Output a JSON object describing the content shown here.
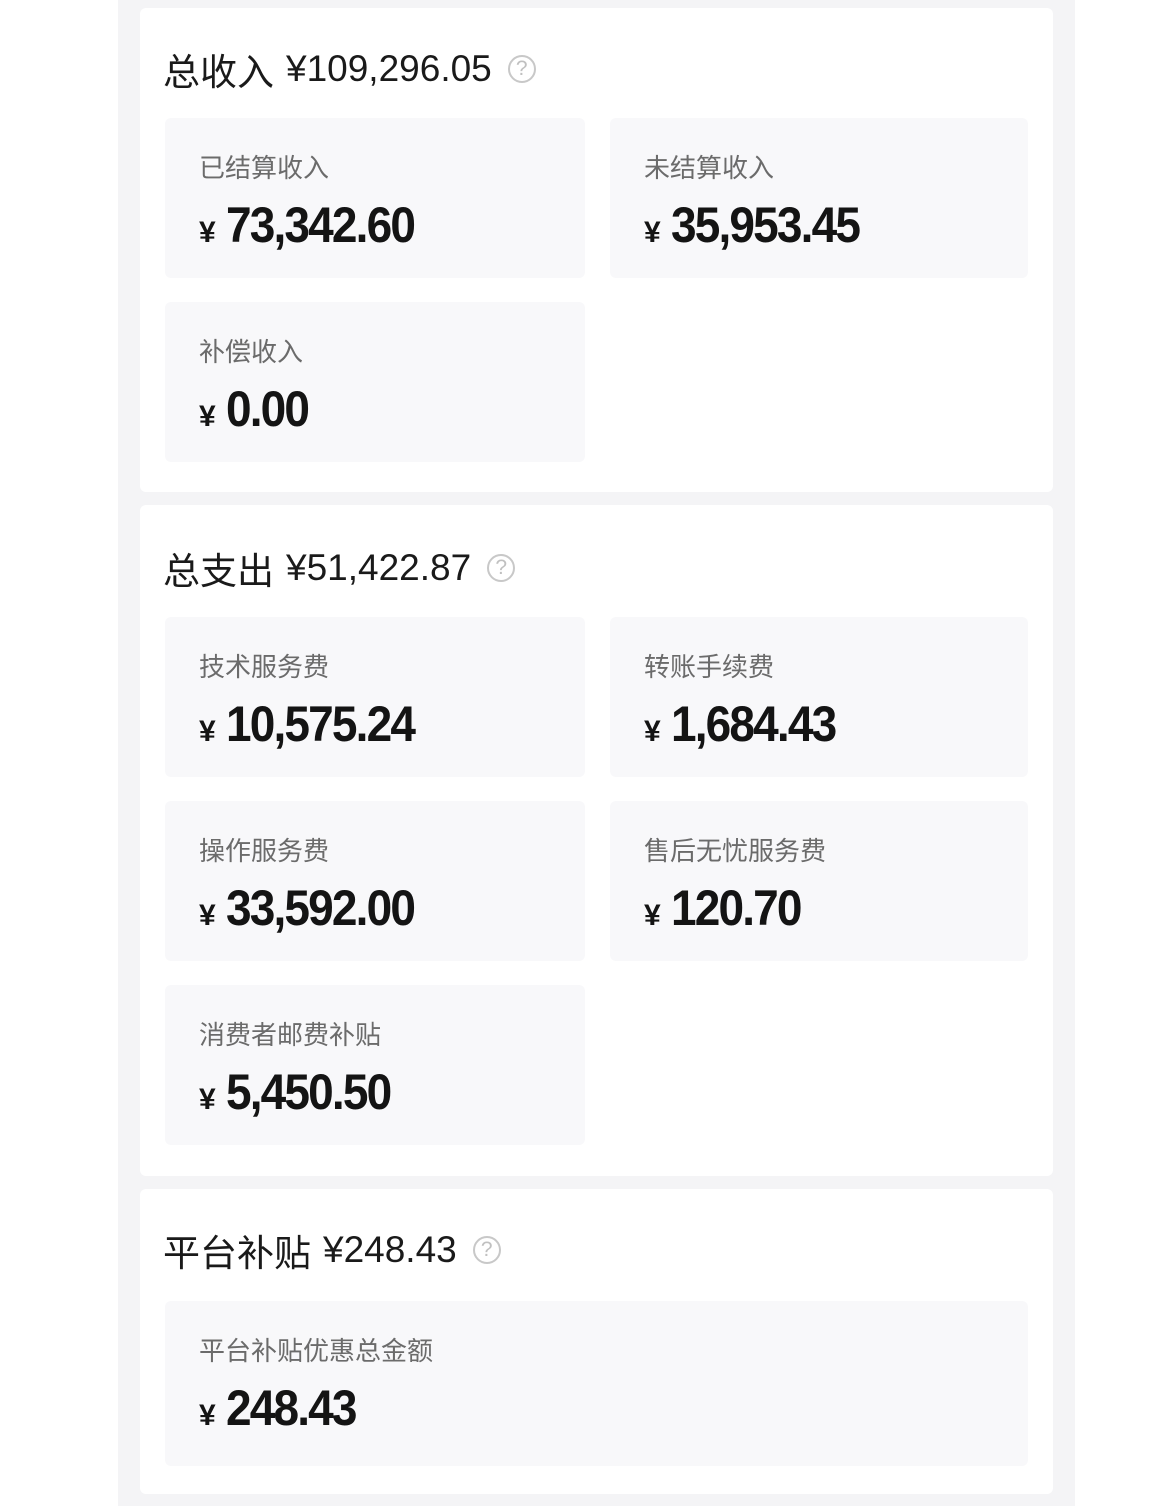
{
  "currency_symbol": "¥",
  "income": {
    "title": "总收入",
    "total": "¥109,296.05",
    "items": [
      {
        "label": "已结算收入",
        "value": "73,342.60"
      },
      {
        "label": "未结算收入",
        "value": "35,953.45"
      },
      {
        "label": "补偿收入",
        "value": "0.00"
      }
    ]
  },
  "expense": {
    "title": "总支出",
    "total": "¥51,422.87",
    "items": [
      {
        "label": "技术服务费",
        "value": "10,575.24"
      },
      {
        "label": "转账手续费",
        "value": "1,684.43"
      },
      {
        "label": "操作服务费",
        "value": "33,592.00"
      },
      {
        "label": "售后无忧服务费",
        "value": "120.70"
      },
      {
        "label": "消费者邮费补贴",
        "value": "5,450.50"
      }
    ]
  },
  "subsidy": {
    "title": "平台补贴",
    "total": "¥248.43",
    "items": [
      {
        "label": "平台补贴优惠总金额",
        "value": "248.43"
      }
    ]
  },
  "help_glyph": "?",
  "icons": {
    "help": "question-circle-icon"
  }
}
